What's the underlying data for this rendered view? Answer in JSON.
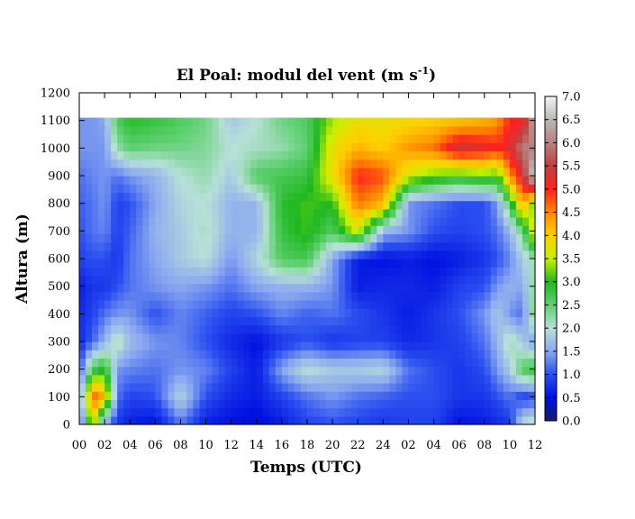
{
  "chart_data": {
    "type": "heatmap",
    "title": "El Poal: modul del vent (m s",
    "title_sup": "-1",
    "title_end": ")",
    "xlabel": "Temps (UTC)",
    "ylabel": "Altura (m)",
    "x_ticks": [
      "00",
      "02",
      "04",
      "06",
      "08",
      "10",
      "12",
      "14",
      "16",
      "18",
      "20",
      "22",
      "24",
      "02",
      "04",
      "06",
      "08",
      "10",
      "12"
    ],
    "y_ticks": [
      0,
      100,
      200,
      300,
      400,
      500,
      600,
      700,
      800,
      900,
      1000,
      1100,
      1200
    ],
    "ylim": [
      0,
      1200
    ],
    "data_top": 1110,
    "x_range_hours": [
      0,
      36
    ],
    "colorbar": {
      "ticks": [
        "0.0",
        "0.5",
        "1.0",
        "1.5",
        "2.0",
        "2.5",
        "3.0",
        "3.5",
        "4.0",
        "4.5",
        "5.0",
        "5.5",
        "6.0",
        "6.5",
        "7.0"
      ],
      "range": [
        0,
        7
      ],
      "colors": [
        {
          "v": 0.0,
          "c": "#1a1a6e"
        },
        {
          "v": 0.5,
          "c": "#0010e0"
        },
        {
          "v": 1.0,
          "c": "#2a4ef0"
        },
        {
          "v": 1.5,
          "c": "#8aa8f0"
        },
        {
          "v": 2.0,
          "c": "#b8e0d8"
        },
        {
          "v": 2.5,
          "c": "#5ed070"
        },
        {
          "v": 3.0,
          "c": "#20b820"
        },
        {
          "v": 3.5,
          "c": "#c8f000"
        },
        {
          "v": 4.0,
          "c": "#ffd000"
        },
        {
          "v": 4.5,
          "c": "#ff8a00"
        },
        {
          "v": 5.0,
          "c": "#ff2020"
        },
        {
          "v": 5.5,
          "c": "#c04040"
        },
        {
          "v": 6.0,
          "c": "#b88080"
        },
        {
          "v": 6.5,
          "c": "#b8b8b8"
        },
        {
          "v": 7.0,
          "c": "#f4f4f4"
        }
      ]
    },
    "heights": [
      0,
      100,
      200,
      300,
      400,
      500,
      600,
      700,
      800,
      900,
      1000,
      1100
    ],
    "times": [
      0,
      1,
      2,
      3,
      4,
      6,
      8,
      10,
      12,
      14,
      16,
      18,
      20,
      22,
      24,
      26,
      28,
      30,
      32,
      33,
      34,
      35,
      36
    ],
    "values": [
      [
        0.6,
        3.8,
        1.4,
        0.8,
        0.6,
        0.5,
        1.2,
        0.6,
        0.5,
        0.4,
        0.6,
        0.9,
        1.0,
        0.9,
        0.8,
        0.9,
        0.9,
        0.5,
        0.6,
        0.7,
        0.8,
        2.0,
        2.2
      ],
      [
        1.2,
        4.8,
        4.2,
        1.2,
        0.9,
        1.0,
        1.9,
        1.0,
        0.7,
        0.6,
        0.9,
        1.2,
        1.4,
        1.2,
        1.1,
        1.0,
        1.0,
        0.8,
        0.8,
        1.0,
        1.2,
        0.9,
        1.0
      ],
      [
        1.0,
        2.6,
        3.0,
        1.4,
        1.3,
        1.2,
        1.4,
        1.3,
        0.9,
        0.6,
        1.5,
        2.0,
        1.8,
        1.8,
        1.9,
        1.2,
        1.0,
        0.8,
        1.0,
        1.4,
        1.8,
        2.6,
        2.8
      ],
      [
        0.7,
        1.1,
        1.6,
        2.2,
        1.7,
        1.4,
        1.3,
        1.0,
        0.7,
        0.5,
        0.8,
        1.0,
        0.8,
        0.9,
        0.9,
        0.7,
        0.8,
        0.9,
        1.2,
        1.6,
        2.2,
        1.8,
        1.4
      ],
      [
        0.7,
        0.9,
        1.2,
        1.4,
        1.4,
        1.0,
        1.3,
        1.1,
        0.9,
        1.0,
        1.3,
        1.1,
        1.2,
        1.0,
        0.8,
        0.6,
        0.8,
        1.0,
        1.4,
        1.8,
        1.4,
        1.2,
        2.6
      ],
      [
        0.6,
        0.8,
        0.8,
        1.0,
        1.2,
        1.4,
        1.5,
        1.4,
        1.2,
        1.5,
        1.6,
        1.6,
        1.4,
        0.6,
        0.7,
        0.7,
        0.6,
        0.9,
        1.0,
        1.4,
        1.6,
        1.5,
        2.4
      ],
      [
        0.9,
        1.0,
        1.0,
        0.8,
        1.2,
        1.5,
        1.8,
        2.0,
        1.4,
        1.9,
        2.6,
        2.7,
        1.5,
        0.6,
        0.5,
        0.6,
        0.5,
        0.6,
        0.8,
        1.0,
        1.3,
        1.8,
        2.2
      ],
      [
        1.0,
        1.2,
        1.3,
        0.9,
        1.1,
        1.6,
        1.8,
        2.1,
        1.6,
        1.6,
        2.8,
        3.1,
        2.6,
        3.6,
        1.6,
        1.4,
        1.0,
        0.9,
        1.0,
        1.2,
        1.6,
        2.4,
        4.0
      ],
      [
        1.1,
        1.2,
        1.4,
        0.9,
        1.0,
        1.5,
        1.9,
        2.0,
        1.6,
        1.6,
        2.9,
        3.1,
        3.0,
        4.6,
        4.2,
        1.4,
        1.2,
        1.0,
        1.0,
        1.4,
        2.6,
        4.4,
        3.0
      ],
      [
        1.2,
        1.3,
        1.4,
        1.2,
        1.4,
        1.6,
        2.0,
        2.2,
        1.8,
        2.6,
        2.7,
        2.8,
        3.8,
        5.0,
        4.8,
        3.6,
        3.2,
        3.0,
        3.2,
        3.0,
        4.4,
        5.2,
        7.0
      ],
      [
        1.4,
        1.4,
        1.4,
        2.2,
        2.5,
        2.4,
        2.4,
        2.3,
        2.0,
        2.1,
        2.2,
        2.5,
        3.8,
        4.2,
        4.0,
        4.4,
        4.6,
        5.4,
        5.2,
        5.0,
        5.2,
        6.0,
        6.0
      ],
      [
        1.4,
        1.4,
        1.5,
        2.6,
        2.9,
        2.8,
        2.6,
        2.4,
        1.8,
        2.0,
        2.4,
        2.6,
        3.4,
        3.8,
        3.8,
        3.9,
        4.0,
        4.1,
        4.2,
        4.4,
        5.0,
        5.0,
        6.5
      ]
    ]
  }
}
